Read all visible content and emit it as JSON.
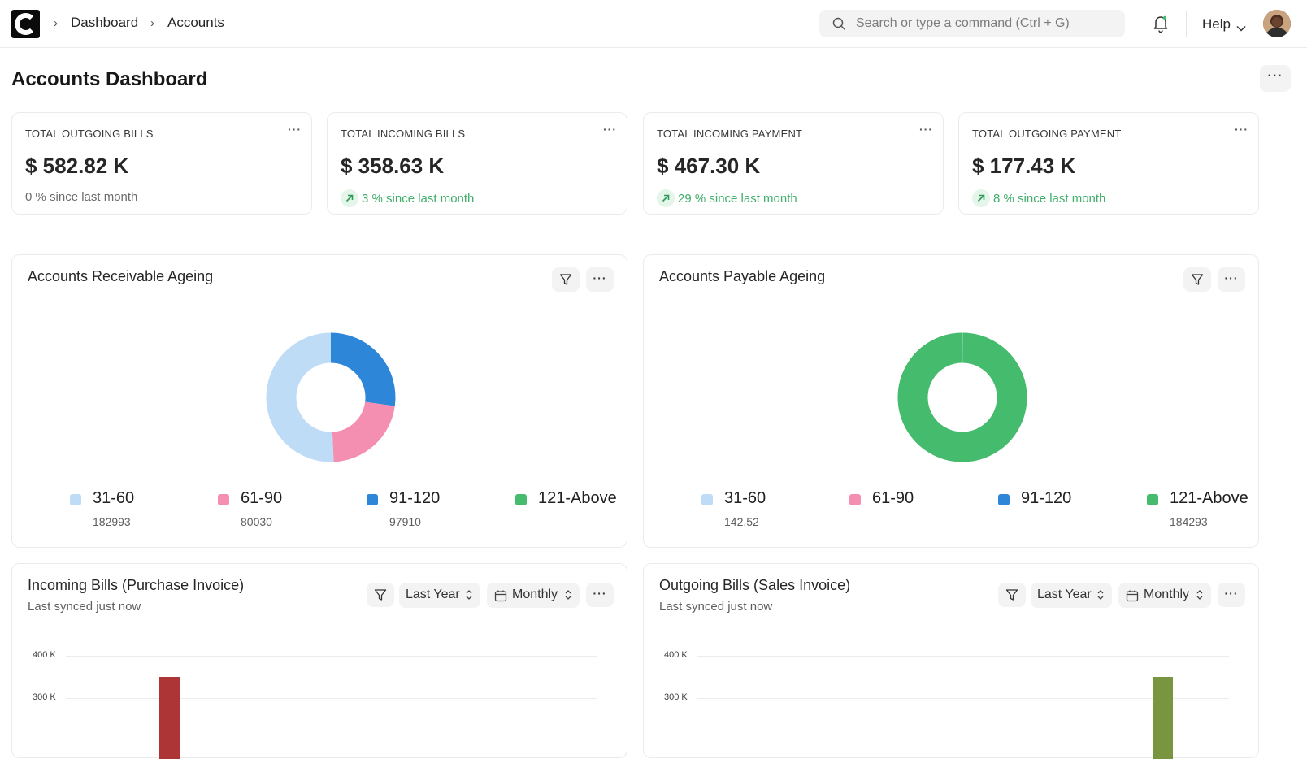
{
  "breadcrumb": [
    "Dashboard",
    "Accounts"
  ],
  "search": {
    "placeholder": "Search or type a command (Ctrl + G)"
  },
  "navbar": {
    "help_label": "Help"
  },
  "page": {
    "title": "Accounts Dashboard",
    "menu_label": "···"
  },
  "number_cards": [
    {
      "title": "TOTAL OUTGOING BILLS",
      "value": "$ 582.82 K",
      "trend": "0 % since last month",
      "trend_up": false
    },
    {
      "title": "TOTAL INCOMING BILLS",
      "value": "$ 358.63 K",
      "trend": "3 % since last month",
      "trend_up": true
    },
    {
      "title": "TOTAL INCOMING PAYMENT",
      "value": "$ 467.30 K",
      "trend": "29 % since last month",
      "trend_up": true
    },
    {
      "title": "TOTAL OUTGOING PAYMENT",
      "value": "$ 177.43 K",
      "trend": "8 % since last month",
      "trend_up": true
    }
  ],
  "dots_label": "···",
  "colors": {
    "light_blue": "#bfdcf6",
    "pink": "#f48fb1",
    "blue": "#2e86d9",
    "green": "#45bb6d",
    "incoming_bar": "#ad3535",
    "outgoing_bar": "#7a9540",
    "trend_up": "#3fae6a"
  },
  "receivable": {
    "title": "Accounts Receivable Ageing",
    "legend": [
      {
        "label": "31-60",
        "value": "182993"
      },
      {
        "label": "61-90",
        "value": "80030"
      },
      {
        "label": "91-120",
        "value": "97910"
      },
      {
        "label": "121-Above",
        "value": ""
      }
    ]
  },
  "payable": {
    "title": "Accounts Payable Ageing",
    "legend": [
      {
        "label": "31-60",
        "value": "142.52"
      },
      {
        "label": "61-90",
        "value": ""
      },
      {
        "label": "91-120",
        "value": ""
      },
      {
        "label": "121-Above",
        "value": "184293"
      }
    ]
  },
  "incoming_bills": {
    "title": "Incoming Bills (Purchase Invoice)",
    "subtitle": "Last synced just now",
    "timespan": "Last Year",
    "interval": "Monthly"
  },
  "outgoing_bills": {
    "title": "Outgoing Bills (Sales Invoice)",
    "subtitle": "Last synced just now",
    "timespan": "Last Year",
    "interval": "Monthly"
  },
  "chart_data": [
    {
      "type": "pie",
      "title": "Accounts Receivable Ageing",
      "categories": [
        "31-60",
        "61-90",
        "91-120",
        "121-Above"
      ],
      "values": [
        182993,
        80030,
        97910,
        0
      ],
      "donut": true
    },
    {
      "type": "pie",
      "title": "Accounts Payable Ageing",
      "categories": [
        "31-60",
        "61-90",
        "91-120",
        "121-Above"
      ],
      "values": [
        142.52,
        0,
        0,
        184293
      ],
      "donut": true
    },
    {
      "type": "bar",
      "title": "Incoming Bills (Purchase Invoice)",
      "y_ticks": [
        "400 K",
        "300 K"
      ],
      "ylim_visible": [
        300000,
        400000
      ],
      "bars": [
        {
          "position": 4,
          "value": 350000
        }
      ]
    },
    {
      "type": "bar",
      "title": "Outgoing Bills (Sales Invoice)",
      "y_ticks": [
        "400 K",
        "300 K"
      ],
      "ylim_visible": [
        300000,
        400000
      ],
      "bars": [
        {
          "position": 20,
          "value": 350000
        }
      ]
    }
  ]
}
